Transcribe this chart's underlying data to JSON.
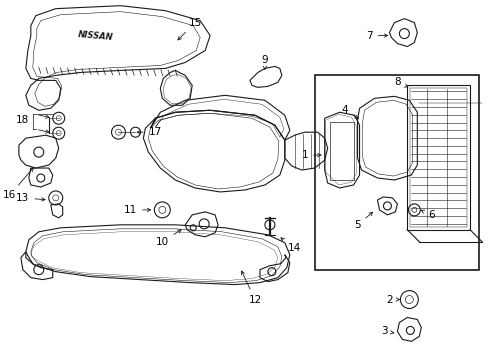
{
  "background_color": "#ffffff",
  "line_color": "#1a1a1a",
  "text_color": "#000000",
  "figure_width": 4.89,
  "figure_height": 3.6,
  "dpi": 100
}
